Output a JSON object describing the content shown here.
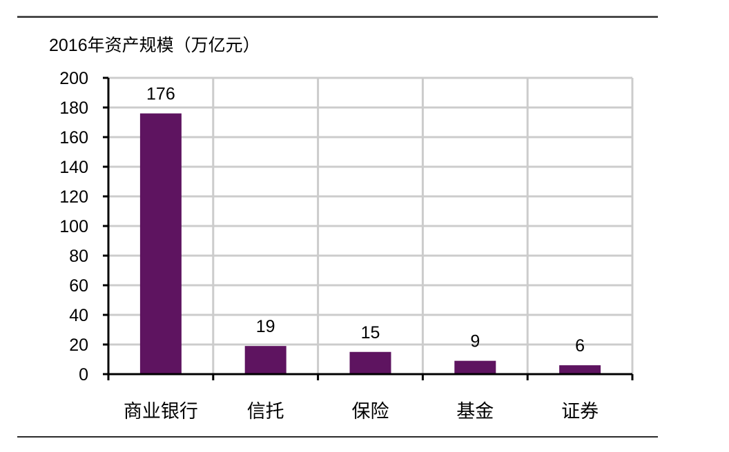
{
  "chart_data": {
    "type": "bar",
    "title": "2016年资产规模（万亿元）",
    "xlabel": "",
    "ylabel": "",
    "categories": [
      "商业银行",
      "信托",
      "保险",
      "基金",
      "证券"
    ],
    "values": [
      176,
      19,
      15,
      9,
      6
    ],
    "data_labels": [
      "176",
      "19",
      "15",
      "9",
      "6"
    ],
    "ylim": [
      0,
      200
    ],
    "yticks": [
      0,
      20,
      40,
      60,
      80,
      100,
      120,
      140,
      160,
      180,
      200
    ],
    "grid": true,
    "legend": null,
    "colors": {
      "bar": "#5e1460",
      "grid": "#cccccc",
      "axis": "#000000"
    }
  }
}
